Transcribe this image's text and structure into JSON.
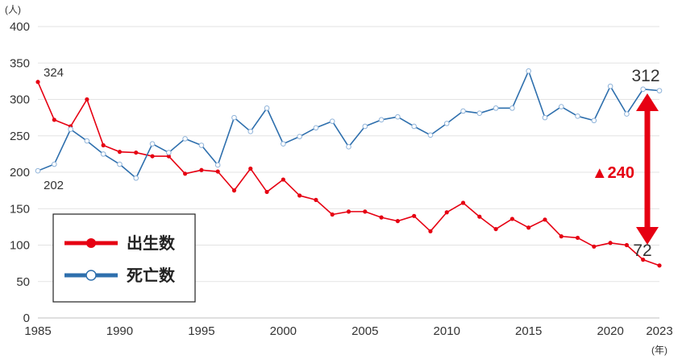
{
  "chart_data": {
    "type": "line",
    "y_unit": "(人)",
    "x_unit": "(年)",
    "ylim": [
      0,
      400
    ],
    "yticks": [
      0,
      50,
      100,
      150,
      200,
      250,
      300,
      350,
      400
    ],
    "xlim": [
      1985,
      2023
    ],
    "xticks": [
      1985,
      1990,
      1995,
      2000,
      2005,
      2010,
      2015,
      2020,
      2023
    ],
    "grid": true,
    "legend_position": "bottom-left",
    "x": [
      1985,
      1986,
      1987,
      1988,
      1989,
      1990,
      1991,
      1992,
      1993,
      1994,
      1995,
      1996,
      1997,
      1998,
      1999,
      2000,
      2001,
      2002,
      2003,
      2004,
      2005,
      2006,
      2007,
      2008,
      2009,
      2010,
      2011,
      2012,
      2013,
      2014,
      2015,
      2016,
      2017,
      2018,
      2019,
      2020,
      2021,
      2022,
      2023
    ],
    "series": [
      {
        "name": "出生数",
        "color": "#e60012",
        "marker": "filled-circle",
        "values": [
          324,
          272,
          263,
          300,
          237,
          228,
          227,
          222,
          222,
          198,
          203,
          201,
          175,
          205,
          173,
          190,
          168,
          162,
          142,
          146,
          146,
          138,
          133,
          140,
          119,
          145,
          158,
          139,
          122,
          136,
          124,
          135,
          112,
          110,
          98,
          103,
          100,
          80,
          72
        ]
      },
      {
        "name": "死亡数",
        "color": "#2e6fad",
        "marker": "open-circle",
        "values": [
          202,
          211,
          259,
          243,
          225,
          211,
          192,
          239,
          227,
          246,
          237,
          210,
          275,
          256,
          288,
          239,
          249,
          261,
          270,
          235,
          263,
          272,
          276,
          263,
          251,
          267,
          284,
          281,
          288,
          288,
          339,
          275,
          290,
          277,
          271,
          318,
          280,
          314,
          312
        ]
      }
    ],
    "annotations": {
      "birth_first": "324",
      "death_first": "202",
      "death_last": "312",
      "birth_last": "72",
      "difference": "▲240"
    }
  }
}
